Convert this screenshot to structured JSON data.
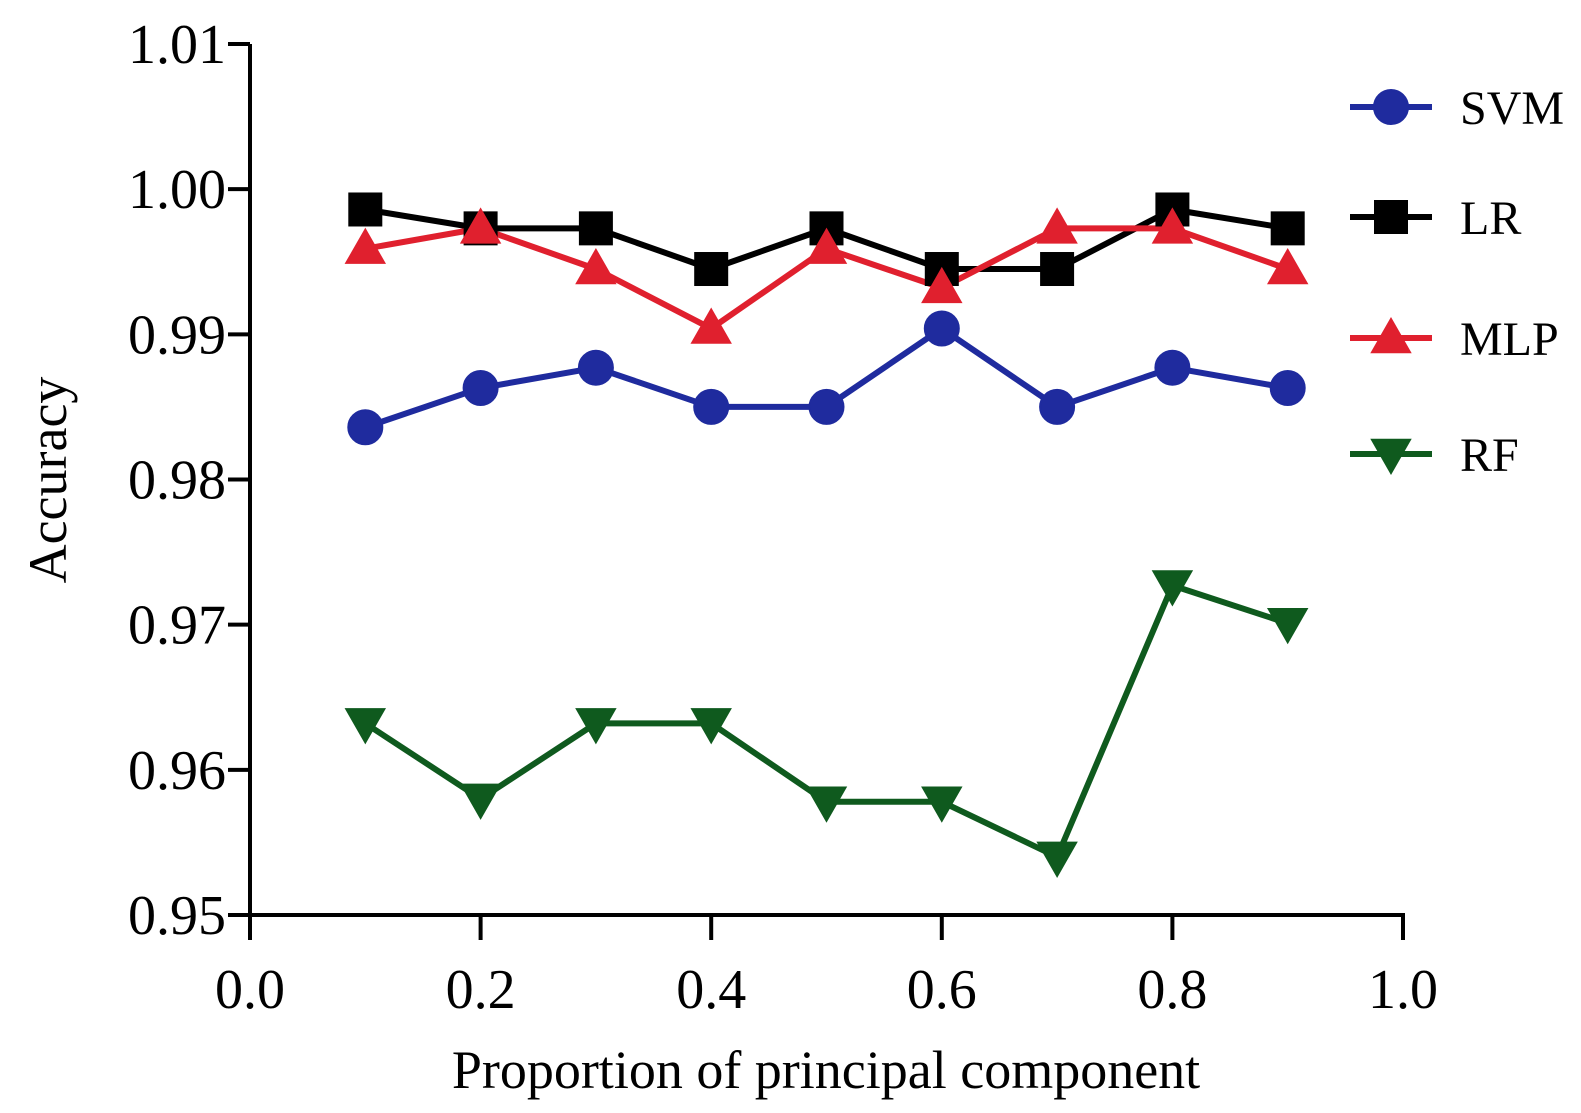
{
  "chart_data": {
    "type": "line",
    "title": "",
    "xlabel": "Proportion of principal component",
    "ylabel": "Accuracy",
    "x": [
      0.1,
      0.2,
      0.3,
      0.4,
      0.5,
      0.6,
      0.7,
      0.8,
      0.9
    ],
    "xlim": [
      0.0,
      1.0
    ],
    "ylim": [
      0.95,
      1.01
    ],
    "xticks": [
      0.0,
      0.2,
      0.4,
      0.6,
      0.8,
      1.0
    ],
    "xtick_labels": [
      "0.0",
      "0.2",
      "0.4",
      "0.6",
      "0.8",
      "1.0"
    ],
    "yticks": [
      0.95,
      0.96,
      0.97,
      0.98,
      0.99,
      1.0,
      1.01
    ],
    "ytick_labels": [
      "0.95",
      "0.96",
      "0.97",
      "0.98",
      "0.99",
      "1.00",
      "1.01"
    ],
    "grid": false,
    "legend_position": "right",
    "series": [
      {
        "name": "SVM",
        "color": "#1f2b9e",
        "marker": "circle",
        "values": [
          0.9836,
          0.9863,
          0.9877,
          0.985,
          0.985,
          0.9904,
          0.985,
          0.9877,
          0.9863
        ]
      },
      {
        "name": "LR",
        "color": "#000000",
        "marker": "square",
        "values": [
          0.9986,
          0.9973,
          0.9973,
          0.9945,
          0.9973,
          0.9945,
          0.9945,
          0.9986,
          0.9973
        ]
      },
      {
        "name": "MLP",
        "color": "#e0202e",
        "marker": "triangle-up",
        "values": [
          0.9959,
          0.9973,
          0.9945,
          0.9904,
          0.9959,
          0.9932,
          0.9973,
          0.9973,
          0.9945
        ]
      },
      {
        "name": "RF",
        "color": "#0f5a1e",
        "marker": "triangle-down",
        "values": [
          0.9632,
          0.958,
          0.9632,
          0.9632,
          0.9578,
          0.9578,
          0.954,
          0.9727,
          0.9701
        ]
      }
    ]
  }
}
